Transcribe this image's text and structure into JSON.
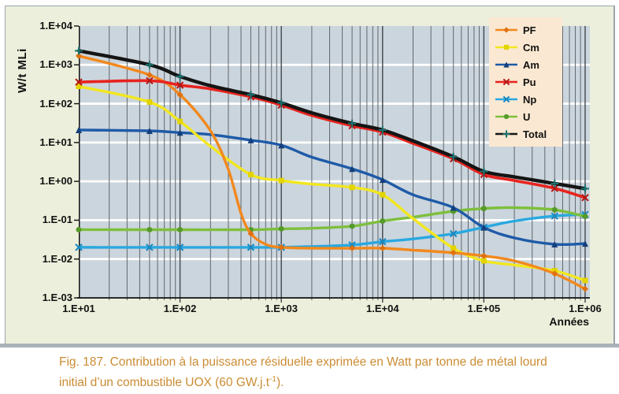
{
  "figure": {
    "y_axis_label": "W/t MLi",
    "x_axis_label": "Années",
    "y_ticks": [
      "1.E+04",
      "1.E+03",
      "1.E+02",
      "1.E+01",
      "1.E+00",
      "1.E-01",
      "1.E-02",
      "1.E-03"
    ],
    "x_ticks": [
      "1.E+01",
      "1.E+02",
      "1.E+03",
      "1.E+04",
      "1.E+05",
      "1.E+06"
    ]
  },
  "legend": {
    "position": "top-right",
    "items": [
      {
        "label": "PF",
        "color": "#F2881C",
        "marker": "diamond",
        "marker_color": "#E07010"
      },
      {
        "label": "Cm",
        "color": "#F2E71F",
        "marker": "square",
        "marker_color": "#E3D400"
      },
      {
        "label": "Am",
        "color": "#1E5AA8",
        "marker": "triangle",
        "marker_color": "#143F7A"
      },
      {
        "label": "Pu",
        "color": "#E8231E",
        "marker": "x",
        "marker_color": "#B51512"
      },
      {
        "label": "Np",
        "color": "#29A8E0",
        "marker": "x",
        "marker_color": "#1888C0"
      },
      {
        "label": "U",
        "color": "#7DBF3C",
        "marker": "circle",
        "marker_color": "#55992A"
      },
      {
        "label": "Total",
        "color": "#151515",
        "marker": "plus",
        "marker_color": "#1A7470"
      }
    ]
  },
  "caption": {
    "line1": "Fig. 187. Contribution à la puissance résiduelle exprimée en Watt par tonne de métal lourd",
    "line2_pre": "initial d’un combustible UOX (60 GW.j.t",
    "line2_sup": "-1",
    "line2_post": ")."
  },
  "colors": {
    "figure_bg": "#ECEFDB",
    "plot_bg": "#CBD5DD",
    "grid_minor": "#61666C",
    "grid_major": "#42474D",
    "grid_white": "#FFFFFF",
    "axis": "#111111",
    "legend_bg": "#FBE8D2",
    "caption": "#CB8C33",
    "border": "#9AA5AC",
    "bottom_bar": "#A9B2B8"
  },
  "chart_data": {
    "type": "line",
    "x_scale": "log",
    "y_scale": "log",
    "xlim": [
      10,
      1000000
    ],
    "ylim": [
      0.001,
      10000
    ],
    "xlabel": "Années",
    "ylabel": "W/t MLi",
    "grid": "log grid: white horizontal lines at each decade, dark vertical lines at log minors and decades",
    "legend_position": "top-right",
    "x_tick_values": [
      10,
      100,
      1000,
      10000,
      100000,
      1000000
    ],
    "y_tick_values": [
      10000,
      1000,
      100,
      10,
      1,
      0.1,
      0.01,
      0.001
    ],
    "marker_x": [
      10,
      50,
      100,
      500,
      1000,
      5000,
      10000,
      50000,
      100000,
      500000,
      1000000
    ],
    "units": "W per tonne of initial heavy metal vs years",
    "series": [
      {
        "name": "Np",
        "color": "#29A8E0",
        "marker": "x",
        "marker_color": "#1888C0",
        "width": 3.4,
        "points": [
          [
            10,
            0.02
          ],
          [
            50,
            0.02
          ],
          [
            100,
            0.02
          ],
          [
            500,
            0.02
          ],
          [
            1000,
            0.02
          ],
          [
            2000,
            0.021
          ],
          [
            5000,
            0.023
          ],
          [
            10000,
            0.028
          ],
          [
            20000,
            0.033
          ],
          [
            50000,
            0.045
          ],
          [
            100000,
            0.066
          ],
          [
            200000,
            0.095
          ],
          [
            500000,
            0.128
          ],
          [
            1000000,
            0.14
          ]
        ]
      },
      {
        "name": "U",
        "color": "#7DBF3C",
        "marker": "circle",
        "marker_color": "#55992A",
        "width": 3.4,
        "points": [
          [
            10,
            0.057
          ],
          [
            50,
            0.057
          ],
          [
            100,
            0.057
          ],
          [
            500,
            0.057
          ],
          [
            1000,
            0.06
          ],
          [
            2000,
            0.062
          ],
          [
            5000,
            0.07
          ],
          [
            10000,
            0.095
          ],
          [
            20000,
            0.12
          ],
          [
            50000,
            0.17
          ],
          [
            100000,
            0.2
          ],
          [
            200000,
            0.21
          ],
          [
            500000,
            0.185
          ],
          [
            1000000,
            0.125
          ]
        ]
      },
      {
        "name": "Am",
        "color": "#1E5AA8",
        "marker": "triangle",
        "marker_color": "#143F7A",
        "width": 3.4,
        "points": [
          [
            10,
            21
          ],
          [
            50,
            20
          ],
          [
            100,
            18
          ],
          [
            200,
            16
          ],
          [
            500,
            11.5
          ],
          [
            1000,
            8.5
          ],
          [
            2000,
            4.2
          ],
          [
            5000,
            2.1
          ],
          [
            10000,
            1.1
          ],
          [
            20000,
            0.45
          ],
          [
            50000,
            0.21
          ],
          [
            100000,
            0.065
          ],
          [
            200000,
            0.035
          ],
          [
            500000,
            0.024
          ],
          [
            1000000,
            0.025
          ]
        ]
      },
      {
        "name": "Cm",
        "color": "#F2E71F",
        "marker": "square",
        "marker_color": "#E3D400",
        "width": 3.4,
        "points": [
          [
            10,
            280
          ],
          [
            50,
            110
          ],
          [
            100,
            35
          ],
          [
            200,
            8
          ],
          [
            500,
            1.5
          ],
          [
            1000,
            1.05
          ],
          [
            2000,
            0.85
          ],
          [
            5000,
            0.7
          ],
          [
            10000,
            0.45
          ],
          [
            20000,
            0.11
          ],
          [
            50000,
            0.019
          ],
          [
            100000,
            0.009
          ],
          [
            200000,
            0.007
          ],
          [
            500000,
            0.005
          ],
          [
            1000000,
            0.0028
          ]
        ]
      },
      {
        "name": "PF",
        "color": "#F2881C",
        "marker": "diamond",
        "marker_color": "#E07010",
        "width": 3.4,
        "points": [
          [
            10,
            1700
          ],
          [
            50,
            550
          ],
          [
            100,
            170
          ],
          [
            200,
            20
          ],
          [
            300,
            2.0
          ],
          [
            400,
            0.15
          ],
          [
            500,
            0.045
          ],
          [
            700,
            0.024
          ],
          [
            1000,
            0.02
          ],
          [
            2000,
            0.019
          ],
          [
            5000,
            0.019
          ],
          [
            10000,
            0.019
          ],
          [
            20000,
            0.017
          ],
          [
            50000,
            0.0145
          ],
          [
            100000,
            0.012
          ],
          [
            200000,
            0.009
          ],
          [
            500000,
            0.0042
          ],
          [
            1000000,
            0.0017
          ]
        ]
      },
      {
        "name": "Pu",
        "color": "#E8231E",
        "marker": "x",
        "marker_color": "#B51512",
        "width": 3.6,
        "points": [
          [
            10,
            360
          ],
          [
            50,
            390
          ],
          [
            100,
            300
          ],
          [
            200,
            240
          ],
          [
            500,
            150
          ],
          [
            1000,
            92
          ],
          [
            2000,
            50
          ],
          [
            5000,
            27
          ],
          [
            10000,
            18.5
          ],
          [
            20000,
            9.5
          ],
          [
            50000,
            3.8
          ],
          [
            100000,
            1.5
          ],
          [
            200000,
            1.05
          ],
          [
            500000,
            0.66
          ],
          [
            1000000,
            0.38
          ]
        ]
      },
      {
        "name": "Total",
        "color": "#151515",
        "marker": "plus",
        "marker_color": "#1A7470",
        "width": 4.4,
        "points": [
          [
            10,
            2300
          ],
          [
            50,
            1000
          ],
          [
            100,
            500
          ],
          [
            200,
            290
          ],
          [
            500,
            170
          ],
          [
            1000,
            105
          ],
          [
            2000,
            58
          ],
          [
            5000,
            31
          ],
          [
            10000,
            21
          ],
          [
            20000,
            11
          ],
          [
            50000,
            4.3
          ],
          [
            100000,
            1.8
          ],
          [
            200000,
            1.3
          ],
          [
            500000,
            0.88
          ],
          [
            1000000,
            0.65
          ]
        ]
      }
    ]
  }
}
